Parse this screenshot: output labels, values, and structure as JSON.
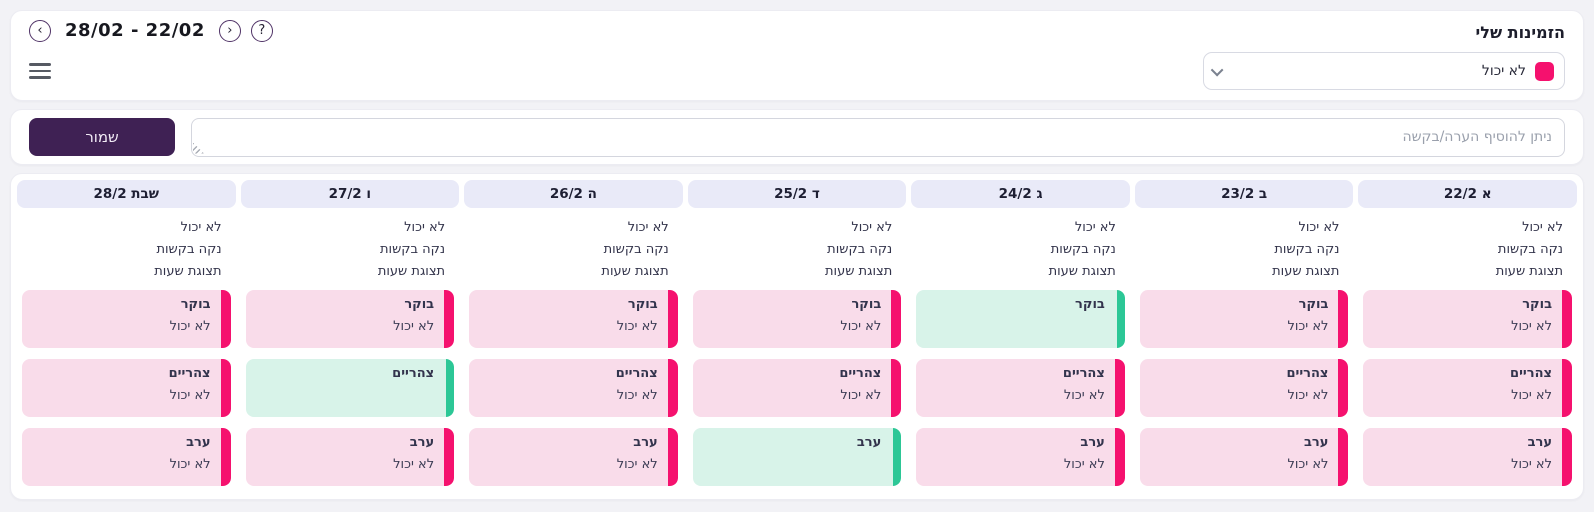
{
  "header": {
    "title": "הזמינות שלי",
    "nav": {
      "prev_glyph": "‹",
      "next_glyph": "›",
      "help_glyph": "?",
      "date_range": "28/02 - 22/02"
    },
    "legend_dropdown": {
      "selected_label": "לא יכול"
    }
  },
  "note_bar": {
    "save_label": "שמור",
    "note_placeholder": "ניתן להוסיף הערה/בקשה"
  },
  "calendar": {
    "day_actions": [
      "לא יכול",
      "נקה בקשות",
      "תצוגת שעות"
    ],
    "periods": [
      "בוקר",
      "צהריים",
      "ערב"
    ],
    "cant_label": "לא יכול",
    "days": [
      {
        "label": "א 22/2",
        "slots": [
          "cant",
          "cant",
          "cant"
        ]
      },
      {
        "label": "ב 23/2",
        "slots": [
          "cant",
          "cant",
          "cant"
        ]
      },
      {
        "label": "ג 24/2",
        "slots": [
          "available",
          "cant",
          "cant"
        ]
      },
      {
        "label": "ד 25/2",
        "slots": [
          "cant",
          "cant",
          "available"
        ]
      },
      {
        "label": "ה 26/2",
        "slots": [
          "cant",
          "cant",
          "cant"
        ]
      },
      {
        "label": "ו 27/2",
        "slots": [
          "cant",
          "available",
          "cant"
        ]
      },
      {
        "label": "שבת 28/2",
        "slots": [
          "cant",
          "cant",
          "cant"
        ]
      }
    ]
  },
  "colors": {
    "cant_bar": "#f5116e",
    "cant_bg": "#f9dcea",
    "available_bar": "#2cc796",
    "available_bg": "#d8f3e9",
    "accent_purple": "#3f2154",
    "header_band": "#e9eaf8"
  }
}
